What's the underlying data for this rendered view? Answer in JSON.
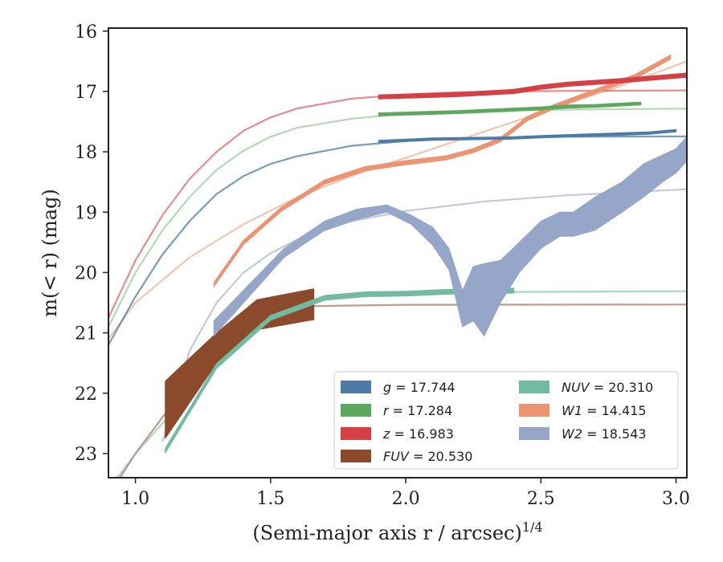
{
  "chart_data": {
    "type": "line",
    "xlabel": "(Semi-major axis r / arcsec)",
    "xlabel_sup": "1/4",
    "ylabel": "m(< r) (mag)",
    "xlim": [
      0.9,
      3.04
    ],
    "ylim": [
      23.4,
      15.95
    ],
    "y_inverted": true,
    "grid": false,
    "legend_placement": "lower-right",
    "x_ticks": [
      1.0,
      1.5,
      2.0,
      2.5,
      3.0
    ],
    "x_tick_labels": [
      "1.0",
      "1.5",
      "2.0",
      "2.5",
      "3.0"
    ],
    "y_ticks": [
      16,
      17,
      18,
      19,
      20,
      21,
      22,
      23
    ],
    "y_tick_labels": [
      "16",
      "17",
      "18",
      "19",
      "20",
      "21",
      "22",
      "23"
    ],
    "legend_columns": [
      [
        "g",
        "r",
        "z",
        "FUV"
      ],
      [
        "NUV",
        "W1",
        "W2"
      ]
    ],
    "series": [
      {
        "name": "g",
        "total": "17.744",
        "color": "#4c7ca6",
        "fit_opacity": 0.75,
        "fit": [
          [
            0.9,
            21.2
          ],
          [
            1.0,
            20.4
          ],
          [
            1.1,
            19.7
          ],
          [
            1.2,
            19.15
          ],
          [
            1.3,
            18.7
          ],
          [
            1.4,
            18.4
          ],
          [
            1.5,
            18.2
          ],
          [
            1.6,
            18.07
          ],
          [
            1.8,
            17.9
          ],
          [
            2.0,
            17.82
          ],
          [
            2.2,
            17.78
          ],
          [
            2.6,
            17.75
          ],
          [
            3.04,
            17.744
          ]
        ],
        "band": [
          [
            1.9,
            17.83,
            17.83
          ],
          [
            2.1,
            17.79,
            17.79
          ],
          [
            2.4,
            17.77,
            17.77
          ],
          [
            2.5,
            17.75,
            17.75
          ],
          [
            2.7,
            17.72,
            17.72
          ],
          [
            2.9,
            17.69,
            17.69
          ],
          [
            3.0,
            17.65,
            17.65
          ]
        ],
        "band_halfwidth": 0.02
      },
      {
        "name": "r",
        "total": "17.284",
        "color": "#5ca85c",
        "fit_opacity": 0.45,
        "fit": [
          [
            0.9,
            20.9
          ],
          [
            1.0,
            20.0
          ],
          [
            1.1,
            19.3
          ],
          [
            1.2,
            18.75
          ],
          [
            1.3,
            18.3
          ],
          [
            1.4,
            17.98
          ],
          [
            1.5,
            17.75
          ],
          [
            1.6,
            17.6
          ],
          [
            1.8,
            17.45
          ],
          [
            2.0,
            17.37
          ],
          [
            2.2,
            17.33
          ],
          [
            2.6,
            17.3
          ],
          [
            3.04,
            17.284
          ]
        ],
        "band": [
          [
            1.9,
            17.38,
            17.38
          ],
          [
            2.2,
            17.34,
            17.34
          ],
          [
            2.4,
            17.3,
            17.3
          ],
          [
            2.5,
            17.28,
            17.28
          ],
          [
            2.6,
            17.25,
            17.25
          ],
          [
            2.7,
            17.24,
            17.24
          ],
          [
            2.87,
            17.2,
            17.2
          ]
        ],
        "band_halfwidth": 0.025
      },
      {
        "name": "z",
        "total": "16.983",
        "color": "#d44043",
        "fit_opacity": 0.6,
        "fit": [
          [
            0.9,
            20.75
          ],
          [
            1.0,
            19.8
          ],
          [
            1.1,
            19.05
          ],
          [
            1.2,
            18.45
          ],
          [
            1.3,
            18.0
          ],
          [
            1.4,
            17.65
          ],
          [
            1.5,
            17.43
          ],
          [
            1.6,
            17.28
          ],
          [
            1.8,
            17.12
          ],
          [
            2.0,
            17.05
          ],
          [
            2.2,
            17.01
          ],
          [
            2.6,
            16.99
          ],
          [
            3.04,
            16.983
          ]
        ],
        "band": [
          [
            1.9,
            17.09,
            17.09
          ],
          [
            2.2,
            17.05,
            17.05
          ],
          [
            2.4,
            17.0,
            17.0
          ],
          [
            2.5,
            16.93,
            16.93
          ],
          [
            2.6,
            16.88,
            16.88
          ],
          [
            2.8,
            16.82,
            16.82
          ],
          [
            3.04,
            16.73,
            16.73
          ]
        ],
        "band_halfwidth": 0.035
      },
      {
        "name": "FUV",
        "total": "20.530",
        "color": "#8b4a2b",
        "fit_opacity": 0.55,
        "fit": [
          [
            0.9,
            23.7
          ],
          [
            1.0,
            23.0
          ],
          [
            1.1,
            22.4
          ],
          [
            1.2,
            21.8
          ],
          [
            1.3,
            21.3
          ],
          [
            1.4,
            20.9
          ],
          [
            1.5,
            20.65
          ],
          [
            1.6,
            20.56
          ],
          [
            2.0,
            20.535
          ],
          [
            3.04,
            20.53
          ]
        ],
        "band": [
          [
            1.11,
            22.75,
            21.8
          ],
          [
            1.3,
            21.5,
            21.0
          ],
          [
            1.45,
            20.95,
            20.45
          ],
          [
            1.66,
            20.78,
            20.27
          ]
        ],
        "band_halfwidth": 0
      },
      {
        "name": "NUV",
        "total": "20.310",
        "color": "#72bba0",
        "fit_opacity": 0.6,
        "fit": [
          [
            0.9,
            23.6
          ],
          [
            1.0,
            23.0
          ],
          [
            1.1,
            22.5
          ],
          [
            1.2,
            22.0
          ],
          [
            1.3,
            21.5
          ],
          [
            1.4,
            21.05
          ],
          [
            1.5,
            20.72
          ],
          [
            1.6,
            20.52
          ],
          [
            1.8,
            20.37
          ],
          [
            2.0,
            20.33
          ],
          [
            3.04,
            20.31
          ]
        ],
        "band": [
          [
            1.11,
            22.95,
            22.95
          ],
          [
            1.3,
            21.55,
            21.55
          ],
          [
            1.5,
            20.75,
            20.75
          ],
          [
            1.7,
            20.42,
            20.42
          ],
          [
            1.85,
            20.36,
            20.36
          ],
          [
            2.0,
            20.35,
            20.35
          ],
          [
            2.15,
            20.32,
            20.32
          ],
          [
            2.4,
            20.3,
            20.3
          ]
        ],
        "band_halfwidth": 0.04
      },
      {
        "name": "W1",
        "total": "14.415",
        "color": "#eb9473",
        "fit_opacity": 0.55,
        "fit": [
          [
            0.9,
            21.1
          ],
          [
            1.0,
            20.5
          ],
          [
            1.2,
            19.75
          ],
          [
            1.4,
            19.2
          ],
          [
            1.6,
            18.75
          ],
          [
            1.8,
            18.4
          ],
          [
            2.0,
            18.1
          ],
          [
            2.2,
            17.8
          ],
          [
            2.4,
            17.5
          ],
          [
            2.6,
            17.2
          ],
          [
            2.8,
            16.9
          ],
          [
            3.04,
            16.5
          ]
        ],
        "band": [
          [
            1.29,
            20.2,
            20.2
          ],
          [
            1.4,
            19.5,
            19.5
          ],
          [
            1.54,
            18.95,
            18.95
          ],
          [
            1.7,
            18.5,
            18.5
          ],
          [
            1.85,
            18.28,
            18.28
          ],
          [
            2.0,
            18.18,
            18.18
          ],
          [
            2.15,
            18.1,
            18.1
          ],
          [
            2.25,
            17.98,
            17.98
          ],
          [
            2.35,
            17.8,
            17.8
          ],
          [
            2.45,
            17.45,
            17.45
          ],
          [
            2.55,
            17.25,
            17.25
          ],
          [
            2.7,
            17.0,
            17.0
          ],
          [
            2.85,
            16.75,
            16.75
          ],
          [
            2.98,
            16.43,
            16.43
          ]
        ],
        "band_halfwidth": 0.035
      },
      {
        "name": "W2",
        "total": "18.543",
        "color": "#96a6c8",
        "fit_opacity": 0.6,
        "fit": [
          [
            1.1,
            22.8
          ],
          [
            1.2,
            21.3
          ],
          [
            1.3,
            20.5
          ],
          [
            1.4,
            20.0
          ],
          [
            1.5,
            19.68
          ],
          [
            1.6,
            19.45
          ],
          [
            1.8,
            19.15
          ],
          [
            2.0,
            18.98
          ],
          [
            2.3,
            18.82
          ],
          [
            2.6,
            18.72
          ],
          [
            3.04,
            18.62
          ]
        ],
        "band": [
          [
            1.29,
            21.05,
            20.8
          ],
          [
            1.55,
            19.75,
            19.6
          ],
          [
            1.7,
            19.3,
            19.15
          ],
          [
            1.82,
            19.12,
            18.95
          ],
          [
            1.93,
            19.0,
            18.88
          ],
          [
            2.02,
            19.2,
            19.05
          ],
          [
            2.1,
            19.55,
            19.25
          ],
          [
            2.16,
            19.95,
            19.6
          ],
          [
            2.21,
            20.9,
            20.3
          ],
          [
            2.25,
            20.8,
            19.9
          ],
          [
            2.29,
            21.05,
            19.85
          ],
          [
            2.35,
            20.5,
            19.8
          ],
          [
            2.42,
            20.0,
            19.5
          ],
          [
            2.5,
            19.6,
            19.15
          ],
          [
            2.57,
            19.4,
            19.0
          ],
          [
            2.62,
            19.4,
            19.0
          ],
          [
            2.7,
            19.3,
            18.75
          ],
          [
            2.8,
            19.0,
            18.5
          ],
          [
            2.88,
            18.75,
            18.2
          ],
          [
            2.95,
            18.5,
            18.05
          ],
          [
            3.0,
            18.35,
            17.95
          ],
          [
            3.04,
            18.15,
            17.75
          ]
        ],
        "band_halfwidth": 0
      }
    ]
  }
}
